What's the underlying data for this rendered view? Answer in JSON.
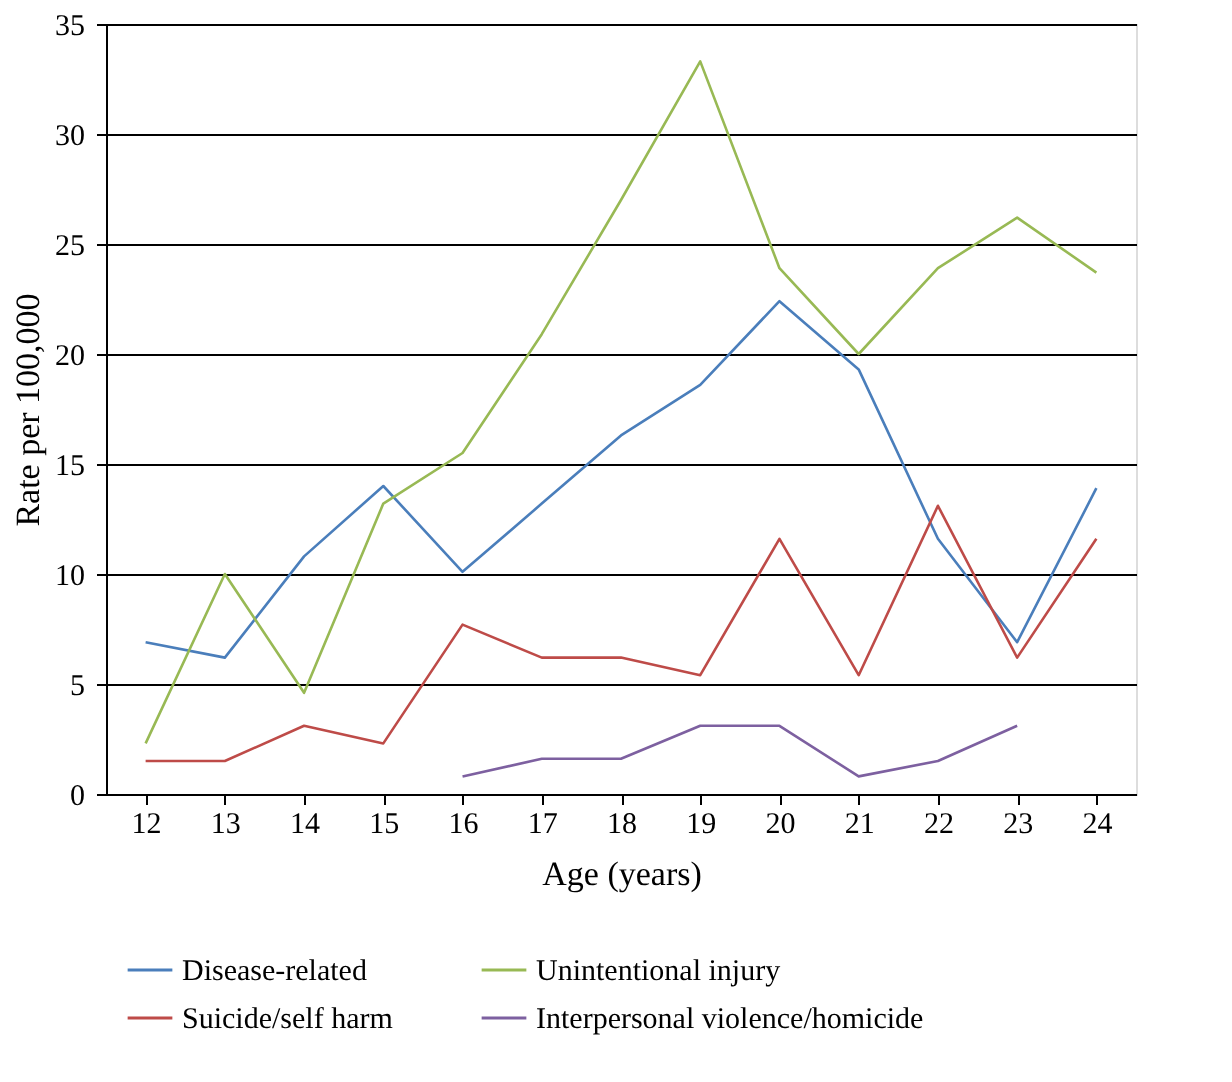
{
  "chart_data": {
    "type": "line",
    "categories": [
      "12",
      "13",
      "14",
      "15",
      "16",
      "17",
      "18",
      "19",
      "20",
      "21",
      "22",
      "23",
      "24"
    ],
    "series": [
      {
        "name": "Disease-related",
        "color": "#4a7ebb",
        "values": [
          6.9,
          6.2,
          10.8,
          14.0,
          10.1,
          13.2,
          16.3,
          18.6,
          22.4,
          19.3,
          11.6,
          6.9,
          13.9
        ]
      },
      {
        "name": "Unintentional injury",
        "color": "#98b954",
        "values": [
          2.3,
          10.0,
          4.6,
          13.2,
          15.5,
          20.9,
          27.0,
          33.3,
          23.9,
          20.0,
          23.9,
          26.2,
          23.7
        ]
      },
      {
        "name": "Suicide/self harm",
        "color": "#be4b48",
        "values": [
          1.5,
          1.5,
          3.1,
          2.3,
          7.7,
          6.2,
          6.2,
          5.4,
          11.6,
          5.4,
          13.1,
          6.2,
          11.6
        ]
      },
      {
        "name": "Interpersonal violence/homicide",
        "color": "#7d60a0",
        "values": [
          null,
          null,
          null,
          null,
          0.8,
          1.6,
          1.6,
          3.1,
          3.1,
          0.8,
          1.5,
          3.1,
          null
        ]
      }
    ],
    "xlabel": "Age (years)",
    "ylabel": "Rate per 100,000",
    "ylim": [
      0,
      35
    ],
    "yticks": [
      0,
      5,
      10,
      15,
      20,
      25,
      30,
      35
    ],
    "grid": "y",
    "legend": "bottom",
    "marker": "none",
    "line_style": "solid"
  }
}
